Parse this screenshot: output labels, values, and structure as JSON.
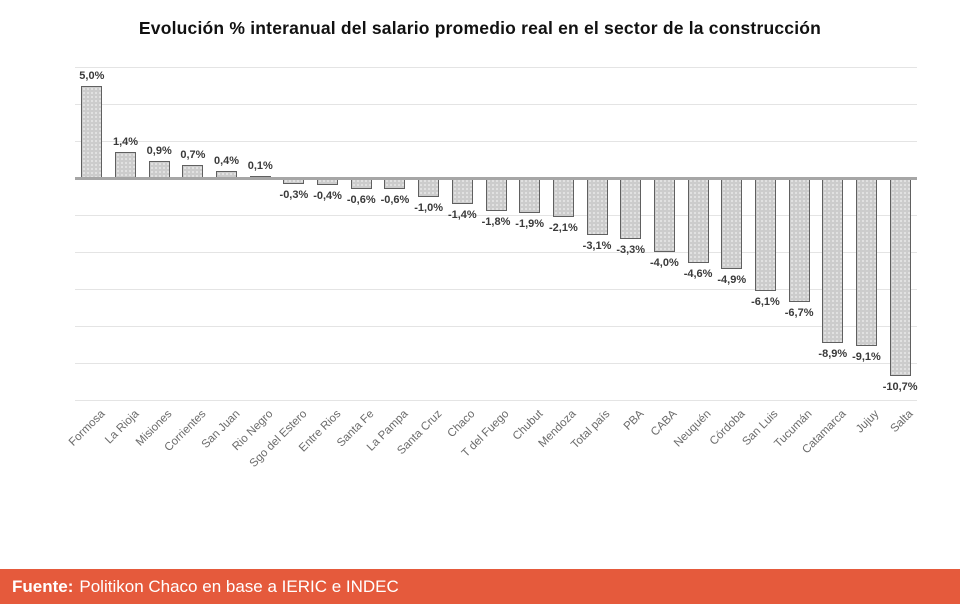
{
  "chart_data": {
    "type": "bar",
    "title": "Evolución % interanual del salario promedio real en el sector de la construcción",
    "categories": [
      "Formosa",
      "La Rioja",
      "Misiones",
      "Corrientes",
      "San Juan",
      "Rio Negro",
      "Sgo del Estero",
      "Entre Rios",
      "Santa Fe",
      "La Pampa",
      "Santa Cruz",
      "Chaco",
      "T del Fuego",
      "Chubut",
      "Mendoza",
      "Total país",
      "PBA",
      "CABA",
      "Neuquén",
      "Córdoba",
      "San Luis",
      "Tucumán",
      "Catamarca",
      "Jujuy",
      "Salta"
    ],
    "values": [
      5.0,
      1.4,
      0.9,
      0.7,
      0.4,
      0.1,
      -0.3,
      -0.4,
      -0.6,
      -0.6,
      -1.0,
      -1.4,
      -1.8,
      -1.9,
      -2.1,
      -3.1,
      -3.3,
      -4.0,
      -4.6,
      -4.9,
      -6.1,
      -6.7,
      -8.9,
      -9.1,
      -10.7
    ],
    "value_labels": [
      "5,0%",
      "1,4%",
      "0,9%",
      "0,7%",
      "0,4%",
      "0,1%",
      "-0,3%",
      "-0,4%",
      "-0,6%",
      "-0,6%",
      "-1,0%",
      "-1,4%",
      "-1,8%",
      "-1,9%",
      "-2,1%",
      "-3,1%",
      "-3,3%",
      "-4,0%",
      "-4,6%",
      "-4,9%",
      "-6,1%",
      "-6,7%",
      "-8,9%",
      "-9,1%",
      "-10,7%"
    ],
    "xlabel": "",
    "ylabel": "",
    "ylim": [
      -12,
      6
    ],
    "gridline_step": 2,
    "grid": "on",
    "legend": "none",
    "data_label_position": "outside-end"
  },
  "colors": {
    "bar_fill": "#cccccc",
    "bar_border": "#606060",
    "gridline": "#e4e4e4",
    "zero_line": "#a6a6a6",
    "value_label": "#3a3a3a",
    "axis_label": "#6b6b6b",
    "title": "#111111",
    "footer_bg": "#e55a3c",
    "footer_text": "#ffffff"
  },
  "footer": {
    "label": "Fuente:",
    "text": "Politikon Chaco en base a IERIC e INDEC"
  }
}
